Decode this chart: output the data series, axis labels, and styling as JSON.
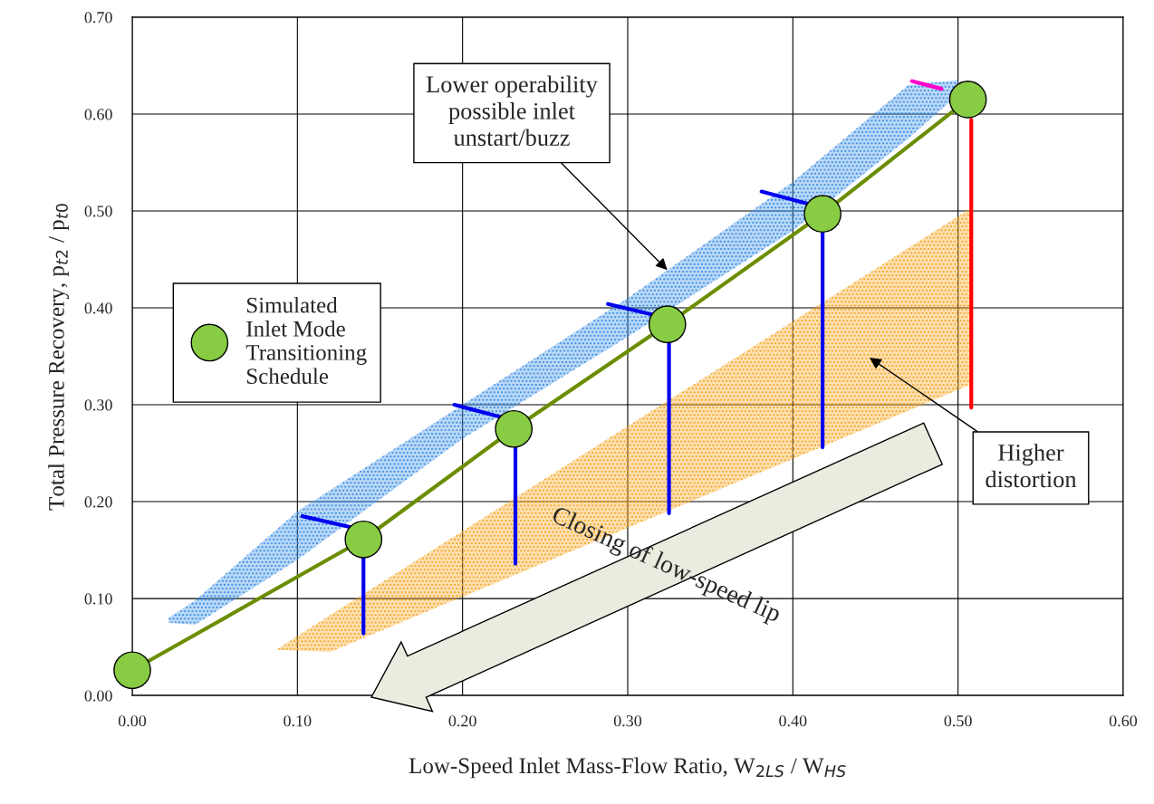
{
  "chart_data": {
    "type": "line",
    "xlabel": "Low-Speed Inlet Mass-Flow Ratio, W$_{2LS}$ / W$_{HS}$",
    "ylabel": "Total Pressure Recovery, p$_{t2}$ / p$_{t0}$",
    "xlim": [
      0,
      0.6
    ],
    "ylim": [
      0,
      0.7
    ],
    "xticks": [
      {
        "value": 0,
        "label": "0.00"
      },
      {
        "value": 0.1,
        "label": "0.10"
      },
      {
        "value": 0.2,
        "label": "0.20"
      },
      {
        "value": 0.3,
        "label": "0.30"
      },
      {
        "value": 0.4,
        "label": "0.40"
      },
      {
        "value": 0.5,
        "label": "0.50"
      },
      {
        "value": 0.6,
        "label": "0.60"
      }
    ],
    "yticks": [
      {
        "value": 0,
        "label": "0.00"
      },
      {
        "value": 0.1,
        "label": "0.10"
      },
      {
        "value": 0.2,
        "label": "0.20"
      },
      {
        "value": 0.3,
        "label": "0.30"
      },
      {
        "value": 0.4,
        "label": "0.40"
      },
      {
        "value": 0.5,
        "label": "0.50"
      },
      {
        "value": 0.6,
        "label": "0.60"
      },
      {
        "value": 0.7,
        "label": "0.70"
      }
    ],
    "grid": true,
    "legend": "left",
    "series": [
      {
        "type": "line",
        "color": "#3a8ee6",
        "x": [
          0.022,
          0.038,
          0.1,
          0.2,
          0.3,
          0.4,
          0.47,
          0.5
        ],
        "values": [
          null,
          null,
          null,
          null,
          null,
          null,
          null,
          null
        ],
        "upper": [
          0.08,
          0.098,
          0.19,
          0.3,
          0.41,
          0.53,
          0.63,
          0.635
        ],
        "lower": [
          0.075,
          0.073,
          0.14,
          0.265,
          0.37,
          0.48,
          0.575,
          0.62
        ]
      },
      {
        "type": "line",
        "color": "#f5a623",
        "x": [
          0.087,
          0.12,
          0.508
        ],
        "values": [
          null,
          null,
          null
        ],
        "upper": [
          0.047,
          0.083,
          0.503
        ],
        "lower": [
          0.047,
          0.045,
          0.321
        ]
      },
      {
        "type": "line",
        "color": "#0000ee",
        "x": [
          0.14,
          0.14
        ],
        "values": [
          0.141,
          0.064
        ]
      },
      {
        "type": "line",
        "color": "#0000ee",
        "x": [
          0.232,
          0.232
        ],
        "values": [
          0.255,
          0.136
        ]
      },
      {
        "type": "line",
        "color": "#0000ee",
        "x": [
          0.325,
          0.325
        ],
        "values": [
          0.363,
          0.188
        ]
      },
      {
        "type": "line",
        "color": "#0000ee",
        "x": [
          0.418,
          0.418
        ],
        "values": [
          0.477,
          0.256
        ]
      },
      {
        "type": "line",
        "color": "#ff0000",
        "x": [
          0.508,
          0.508
        ],
        "values": [
          0.594,
          0.297
        ]
      },
      {
        "type": "line",
        "color": "#0000ee",
        "x": [
          0.103,
          0.134
        ],
        "values": [
          0.185,
          0.173
        ]
      },
      {
        "type": "line",
        "color": "#0000ee",
        "x": [
          0.195,
          0.224
        ],
        "values": [
          0.3,
          0.287
        ]
      },
      {
        "type": "line",
        "color": "#0000ee",
        "x": [
          0.288,
          0.315
        ],
        "values": [
          0.404,
          0.393
        ]
      },
      {
        "type": "line",
        "color": "#0000ee",
        "x": [
          0.381,
          0.41
        ],
        "values": [
          0.52,
          0.507
        ]
      },
      {
        "type": "line",
        "color": "#ff00cc",
        "x": [
          0.472,
          0.49
        ],
        "values": [
          0.634,
          0.626
        ]
      },
      {
        "color": "#6b8e00",
        "x": [
          0,
          0.14,
          0.231,
          0.324,
          0.418,
          0.506
        ],
        "values": [
          0.026,
          0.161,
          0.275,
          0.383,
          0.497,
          0.615
        ]
      },
      {
        "type": "scatter",
        "name": "Simulated\nInlet Mode\nTransitioning\nSchedule",
        "color": "#88cc44",
        "marker": "circle",
        "x": [
          0,
          0.14,
          0.231,
          0.324,
          0.418,
          0.506
        ],
        "values": [
          0.026,
          0.161,
          0.275,
          0.383,
          0.497,
          0.615
        ]
      }
    ],
    "annotations": [
      {
        "text": "Lower operability\npossible inlet\nunstart/buzz",
        "x": 0.324,
        "y": 0.439
      },
      "Higher\ndistortion",
      "Closing of low-speed lip"
    ]
  }
}
